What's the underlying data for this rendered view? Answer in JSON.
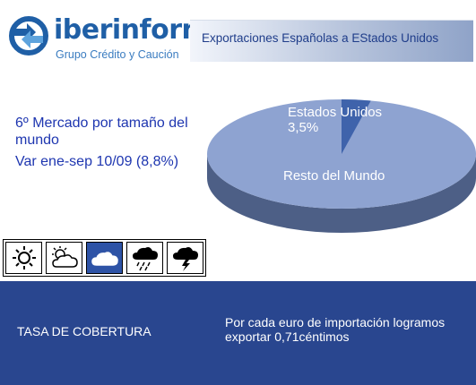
{
  "header": {
    "brand": "iberinform",
    "brand_sub": "Grupo Crédito y Caución",
    "title": "Exportaciones Españolas a EStados Unidos"
  },
  "info": {
    "line1": "6º Mercado por tamaño del mundo",
    "line2": "Var ene-sep 10/09 (8,8%)"
  },
  "weather_icons": [
    {
      "icon": "sun-icon",
      "active": false
    },
    {
      "icon": "sun-cloud-icon",
      "active": false
    },
    {
      "icon": "cloud-icon",
      "active": true
    },
    {
      "icon": "rain-cloud-icon",
      "active": false
    },
    {
      "icon": "storm-cloud-icon",
      "active": false
    }
  ],
  "colors": {
    "pie_main": "#8ea3d1",
    "pie_slice": "#3f63ab",
    "pie_side": "#4d5f86",
    "bottom_bg": "#29468f",
    "text_blue": "#1e36b0"
  },
  "chart_data": {
    "type": "pie",
    "labels": [
      "Estados Unidos",
      "Resto del Mundo"
    ],
    "values": [
      3.5,
      96.5
    ],
    "data_labels": [
      "Estados Unidos\n3,5%",
      "Resto del Mundo"
    ]
  },
  "bottom": {
    "label": "TASA DE COBERTURA",
    "text": "Por cada euro de importación logramos exportar 0,71céntimos"
  }
}
